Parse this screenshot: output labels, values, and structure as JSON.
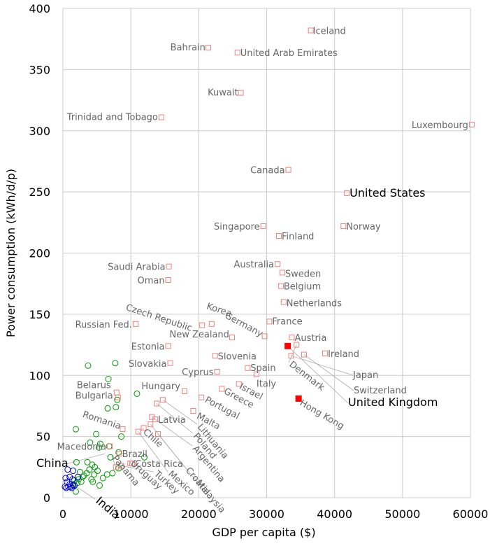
{
  "chart_data": {
    "type": "scatter",
    "xlabel": "GDP per capita ($)",
    "ylabel": "Power consumption (kWh/d/p)",
    "xlim": [
      0,
      60000
    ],
    "ylim": [
      0,
      400
    ],
    "xticks": [
      0,
      10000,
      20000,
      30000,
      40000,
      50000,
      60000
    ],
    "yticks": [
      0,
      50,
      100,
      150,
      200,
      250,
      300,
      350,
      400
    ],
    "grid": true,
    "colors": {
      "labelled": "#f08080",
      "highlight": "#ff0000",
      "unlabelled_mid": "#009900",
      "unlabelled_low": "#0000cc",
      "leader": "#aaaaaa",
      "grid": "#cccccc"
    },
    "labelled_points": [
      {
        "name": "Iceland",
        "x": 36500,
        "y": 382
      },
      {
        "name": "Bahrain",
        "x": 21400,
        "y": 368
      },
      {
        "name": "United Arab Emirates",
        "x": 25700,
        "y": 364
      },
      {
        "name": "Kuwait",
        "x": 26200,
        "y": 331
      },
      {
        "name": "Trinidad and Tobago",
        "x": 14500,
        "y": 311
      },
      {
        "name": "Luxembourg",
        "x": 60200,
        "y": 305
      },
      {
        "name": "Canada",
        "x": 33200,
        "y": 268
      },
      {
        "name": "United States",
        "x": 41800,
        "y": 249
      },
      {
        "name": "Singapore",
        "x": 29500,
        "y": 222
      },
      {
        "name": "Norway",
        "x": 41300,
        "y": 222
      },
      {
        "name": "Finland",
        "x": 31800,
        "y": 214
      },
      {
        "name": "Australia",
        "x": 31600,
        "y": 191
      },
      {
        "name": "Saudi Arabia",
        "x": 15600,
        "y": 189
      },
      {
        "name": "Sweden",
        "x": 32300,
        "y": 184
      },
      {
        "name": "Oman",
        "x": 15500,
        "y": 178
      },
      {
        "name": "Belgium",
        "x": 32100,
        "y": 173
      },
      {
        "name": "Netherlands",
        "x": 32500,
        "y": 160
      },
      {
        "name": "Russian Fed.",
        "x": 10700,
        "y": 142
      },
      {
        "name": "Czech Republic",
        "x": 20500,
        "y": 141
      },
      {
        "name": "Korea",
        "x": 21900,
        "y": 142
      },
      {
        "name": "France",
        "x": 30400,
        "y": 144
      },
      {
        "name": "Germany",
        "x": 29700,
        "y": 132
      },
      {
        "name": "New Zealand",
        "x": 24900,
        "y": 131
      },
      {
        "name": "Austria",
        "x": 33700,
        "y": 131
      },
      {
        "name": "Estonia",
        "x": 15500,
        "y": 124
      },
      {
        "name": "Ireland",
        "x": 38600,
        "y": 118
      },
      {
        "name": "Slovenia",
        "x": 22400,
        "y": 116
      },
      {
        "name": "Japan",
        "x": 33600,
        "y": 116
      },
      {
        "name": "Switzerland",
        "x": 35500,
        "y": 117
      },
      {
        "name": "Denmark",
        "x": 34400,
        "y": 125
      },
      {
        "name": "Slovakia",
        "x": 15800,
        "y": 110
      },
      {
        "name": "Spain",
        "x": 27200,
        "y": 106
      },
      {
        "name": "Cyprus",
        "x": 22700,
        "y": 103
      },
      {
        "name": "Italy",
        "x": 28500,
        "y": 101
      },
      {
        "name": "Israel",
        "x": 25900,
        "y": 93
      },
      {
        "name": "Greece",
        "x": 23400,
        "y": 89
      },
      {
        "name": "Hungary",
        "x": 17900,
        "y": 87
      },
      {
        "name": "Belarus",
        "x": 7900,
        "y": 86
      },
      {
        "name": "Bulgaria",
        "x": 8100,
        "y": 82
      },
      {
        "name": "Portugal",
        "x": 20400,
        "y": 82
      },
      {
        "name": "Lithuania",
        "x": 14700,
        "y": 80
      },
      {
        "name": "Hong Kong",
        "x": 34700,
        "y": 81
      },
      {
        "name": "United Kingdom",
        "x": 33100,
        "y": 124
      },
      {
        "name": "Malta",
        "x": 19200,
        "y": 71
      },
      {
        "name": "Poland",
        "x": 13800,
        "y": 77
      },
      {
        "name": "Argentina",
        "x": 13100,
        "y": 66
      },
      {
        "name": "Latvia",
        "x": 13600,
        "y": 64
      },
      {
        "name": "Croatia",
        "x": 12900,
        "y": 60
      },
      {
        "name": "Romania",
        "x": 8800,
        "y": 56
      },
      {
        "name": "Chile",
        "x": 11900,
        "y": 57
      },
      {
        "name": "Mexico",
        "x": 11100,
        "y": 54
      },
      {
        "name": "Malaysia",
        "x": 14000,
        "y": 52
      },
      {
        "name": "Macedonia",
        "x": 6900,
        "y": 42
      },
      {
        "name": "Brazil",
        "x": 8300,
        "y": 36
      },
      {
        "name": "Costa Rica",
        "x": 10200,
        "y": 28
      },
      {
        "name": "Uruguay",
        "x": 9900,
        "y": 28
      },
      {
        "name": "Turkey",
        "x": 8600,
        "y": 26
      },
      {
        "name": "Panama",
        "x": 7800,
        "y": 25
      }
    ],
    "highlighted_points": [
      {
        "name": "United Kingdom",
        "x": 33100,
        "y": 124
      },
      {
        "name": "Hong Kong",
        "x": 34700,
        "y": 81
      }
    ],
    "unlabelled_mid_points": [
      {
        "x": 3700,
        "y": 108
      },
      {
        "x": 7700,
        "y": 110
      },
      {
        "x": 6700,
        "y": 97
      },
      {
        "x": 10900,
        "y": 85
      },
      {
        "x": 8000,
        "y": 80
      },
      {
        "x": 6600,
        "y": 73
      },
      {
        "x": 7800,
        "y": 74
      },
      {
        "x": 1900,
        "y": 56
      },
      {
        "x": 4900,
        "y": 52
      },
      {
        "x": 8600,
        "y": 50
      },
      {
        "x": 5500,
        "y": 44
      },
      {
        "x": 4000,
        "y": 45
      },
      {
        "x": 6800,
        "y": 42
      },
      {
        "x": 5300,
        "y": 41
      },
      {
        "x": 8200,
        "y": 37
      },
      {
        "x": 12000,
        "y": 33
      },
      {
        "x": 7000,
        "y": 33
      },
      {
        "x": 2000,
        "y": 29
      },
      {
        "x": 3600,
        "y": 29
      },
      {
        "x": 4300,
        "y": 27
      },
      {
        "x": 4700,
        "y": 25
      },
      {
        "x": 8200,
        "y": 24
      },
      {
        "x": 3900,
        "y": 23
      },
      {
        "x": 5100,
        "y": 22
      },
      {
        "x": 2500,
        "y": 21
      },
      {
        "x": 3500,
        "y": 20
      },
      {
        "x": 4600,
        "y": 19
      },
      {
        "x": 6500,
        "y": 19
      },
      {
        "x": 3100,
        "y": 18
      },
      {
        "x": 2900,
        "y": 17
      },
      {
        "x": 5900,
        "y": 16
      },
      {
        "x": 2300,
        "y": 15
      },
      {
        "x": 4200,
        "y": 15
      },
      {
        "x": 1700,
        "y": 14
      },
      {
        "x": 2700,
        "y": 13
      },
      {
        "x": 4400,
        "y": 13
      },
      {
        "x": 2100,
        "y": 12
      },
      {
        "x": 1500,
        "y": 11
      },
      {
        "x": 5400,
        "y": 10
      },
      {
        "x": 1900,
        "y": 5
      },
      {
        "x": 7300,
        "y": 20
      }
    ],
    "unlabelled_low_points": [
      {
        "x": 700,
        "y": 23
      },
      {
        "x": 1500,
        "y": 22
      },
      {
        "x": 1000,
        "y": 17
      },
      {
        "x": 1400,
        "y": 15
      },
      {
        "x": 400,
        "y": 16
      },
      {
        "x": 2200,
        "y": 17
      },
      {
        "x": 600,
        "y": 13
      },
      {
        "x": 1000,
        "y": 11
      },
      {
        "x": 1500,
        "y": 10
      },
      {
        "x": 1700,
        "y": 10
      },
      {
        "x": 1200,
        "y": 9
      },
      {
        "x": 300,
        "y": 9
      },
      {
        "x": 800,
        "y": 9
      },
      {
        "x": 500,
        "y": 8
      },
      {
        "x": 1300,
        "y": 8
      }
    ],
    "big_labels": [
      "United States",
      "United Kingdom",
      "China",
      "India"
    ],
    "free_labels": [
      {
        "name": "China",
        "x": -3500,
        "y": 28
      },
      {
        "name": "India",
        "x": 4500,
        "y": -2
      }
    ]
  }
}
